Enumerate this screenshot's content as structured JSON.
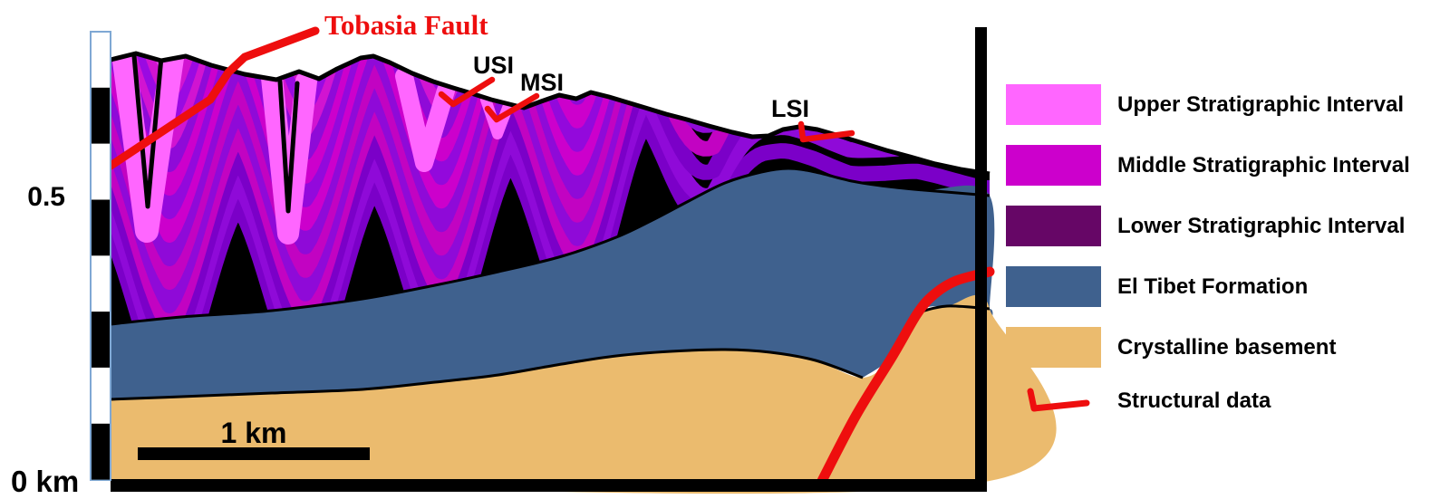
{
  "labels": {
    "tobasia_fault": "Tobasia Fault",
    "usi": "USI",
    "msi": "MSI",
    "lsi": "LSI",
    "v_scale_upper": "0.5",
    "v_scale_zero": "0 km",
    "h_scale": "1 km"
  },
  "legend": {
    "items": [
      {
        "label": "Upper Stratigraphic Interval",
        "color": "#ff66ff",
        "type": "swatch"
      },
      {
        "label": "Middle Stratigraphic Interval",
        "color": "#cc00cc",
        "type": "swatch"
      },
      {
        "label": "Lower Stratigraphic Interval",
        "color": "#660666",
        "type": "swatch"
      },
      {
        "label": "El Tibet Formation",
        "color": "#3f618e",
        "type": "swatch"
      },
      {
        "label": "Crystalline basement",
        "color": "#ebbb6e",
        "type": "swatch"
      },
      {
        "label": "Structural data",
        "color": "#ee0e0e",
        "type": "line-symbol"
      }
    ]
  },
  "colors": {
    "upper_interval_pink": "#ff66ff",
    "middle_interval_magenta": "#cc00cc",
    "lower_interval_purple": "#660666",
    "fold_violet": "#8f0ad8",
    "el_tibet_blue": "#3f618e",
    "basement_tan": "#ebbb6e",
    "fault_red": "#ee0e0e",
    "outline_black": "#000000"
  }
}
